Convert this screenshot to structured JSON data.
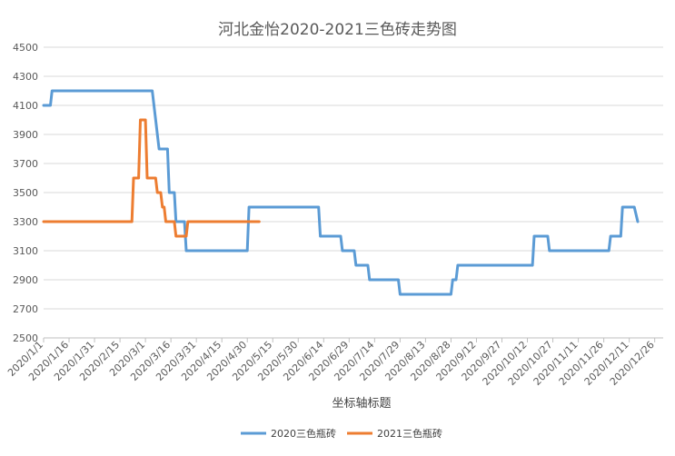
{
  "chart_data": {
    "type": "line",
    "title": "河北金怡2020-2021三色砖走势图",
    "xlabel": "坐标轴标题",
    "ylabel": "",
    "ylim": [
      2500,
      4500
    ],
    "yticks": [
      2500,
      2700,
      2900,
      3100,
      3300,
      3500,
      3700,
      3900,
      4100,
      4300,
      4500
    ],
    "xlim": [
      "2020/1/1",
      "2020/12/31"
    ],
    "xticks": [
      "2020/1/1",
      "2020/1/16",
      "2020/1/31",
      "2020/2/15",
      "2020/3/1",
      "2020/3/16",
      "2020/3/31",
      "2020/4/15",
      "2020/4/30",
      "2020/5/15",
      "2020/5/30",
      "2020/6/14",
      "2020/6/29",
      "2020/7/14",
      "2020/7/29",
      "2020/8/13",
      "2020/8/28",
      "2020/9/12",
      "2020/9/27",
      "2020/10/12",
      "2020/10/27",
      "2020/11/11",
      "2020/11/26",
      "2020/12/11",
      "2020/12/26"
    ],
    "grid": "horizontal",
    "legend_position": "bottom",
    "series": [
      {
        "name": "2020三色瓶砖",
        "color": "#5B9BD5",
        "points": [
          [
            "2020/1/1",
            4100
          ],
          [
            "2020/1/5",
            4100
          ],
          [
            "2020/1/6",
            4200
          ],
          [
            "2020/3/5",
            4200
          ],
          [
            "2020/3/9",
            3800
          ],
          [
            "2020/3/14",
            3800
          ],
          [
            "2020/3/15",
            3500
          ],
          [
            "2020/3/18",
            3500
          ],
          [
            "2020/3/19",
            3300
          ],
          [
            "2020/3/24",
            3300
          ],
          [
            "2020/3/25",
            3100
          ],
          [
            "2020/4/30",
            3100
          ],
          [
            "2020/5/1",
            3400
          ],
          [
            "2020/6/11",
            3400
          ],
          [
            "2020/6/12",
            3200
          ],
          [
            "2020/6/24",
            3200
          ],
          [
            "2020/6/25",
            3100
          ],
          [
            "2020/7/2",
            3100
          ],
          [
            "2020/7/3",
            3000
          ],
          [
            "2020/7/10",
            3000
          ],
          [
            "2020/7/11",
            2900
          ],
          [
            "2020/7/28",
            2900
          ],
          [
            "2020/7/29",
            2800
          ],
          [
            "2020/8/28",
            2800
          ],
          [
            "2020/8/29",
            2900
          ],
          [
            "2020/8/31",
            2900
          ],
          [
            "2020/9/1",
            3000
          ],
          [
            "2020/10/15",
            3000
          ],
          [
            "2020/10/16",
            3200
          ],
          [
            "2020/10/24",
            3200
          ],
          [
            "2020/10/25",
            3100
          ],
          [
            "2020/11/29",
            3100
          ],
          [
            "2020/11/30",
            3200
          ],
          [
            "2020/12/6",
            3200
          ],
          [
            "2020/12/7",
            3400
          ],
          [
            "2020/12/14",
            3400
          ],
          [
            "2020/12/16",
            3300
          ]
        ]
      },
      {
        "name": "2021三色瓶砖",
        "color": "#ED7D31",
        "points": [
          [
            "2020/1/1",
            3300
          ],
          [
            "2020/2/22",
            3300
          ],
          [
            "2020/2/23",
            3600
          ],
          [
            "2020/2/26",
            3600
          ],
          [
            "2020/2/27",
            4000
          ],
          [
            "2020/3/1",
            4000
          ],
          [
            "2020/3/2",
            3600
          ],
          [
            "2020/3/7",
            3600
          ],
          [
            "2020/3/8",
            3500
          ],
          [
            "2020/3/10",
            3500
          ],
          [
            "2020/3/11",
            3400
          ],
          [
            "2020/3/12",
            3400
          ],
          [
            "2020/3/13",
            3300
          ],
          [
            "2020/3/18",
            3300
          ],
          [
            "2020/3/19",
            3200
          ],
          [
            "2020/3/25",
            3200
          ],
          [
            "2020/3/26",
            3300
          ],
          [
            "2020/5/7",
            3300
          ]
        ]
      }
    ]
  }
}
